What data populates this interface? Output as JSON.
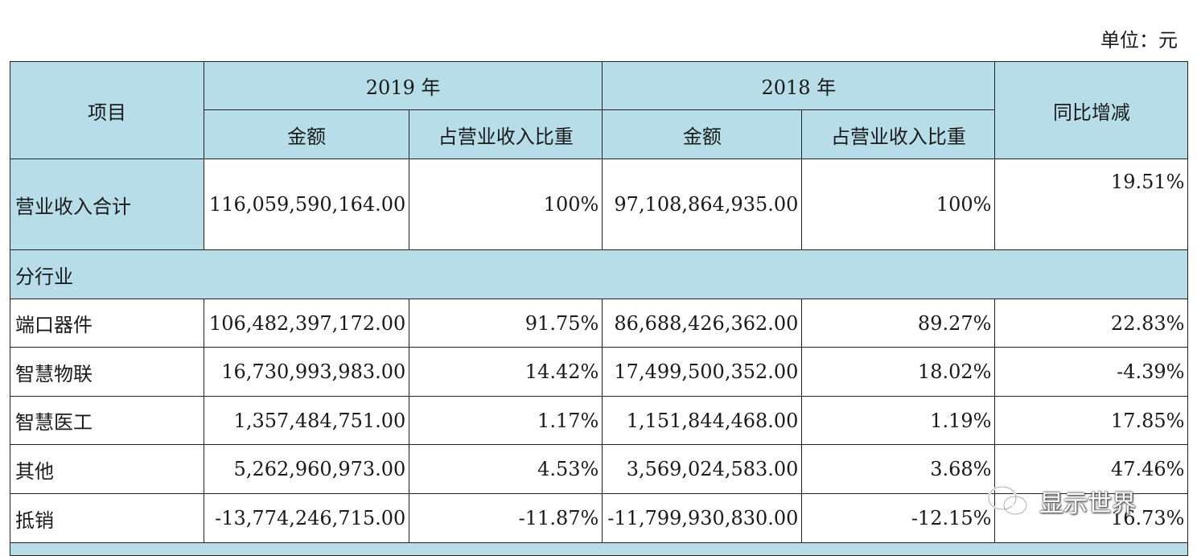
{
  "unit_label": "单位：元",
  "header": {
    "item": "项目",
    "year_2019": "2019 年",
    "year_2018": "2018 年",
    "yoy": "同比增减",
    "amount": "金额",
    "share": "占营业收入比重"
  },
  "total": {
    "label": "营业收入合计",
    "amount_2019": "116,059,590,164.00",
    "share_2019": "100%",
    "amount_2018": "97,108,864,935.00",
    "share_2018": "100%",
    "yoy": "19.51%"
  },
  "section_label": "分行业",
  "rows": [
    {
      "label": "端口器件",
      "amount_2019": "106,482,397,172.00",
      "share_2019": "91.75%",
      "amount_2018": "86,688,426,362.00",
      "share_2018": "89.27%",
      "yoy": "22.83%"
    },
    {
      "label": "智慧物联",
      "amount_2019": "16,730,993,983.00",
      "share_2019": "14.42%",
      "amount_2018": "17,499,500,352.00",
      "share_2018": "18.02%",
      "yoy": "-4.39%"
    },
    {
      "label": "智慧医工",
      "amount_2019": "1,357,484,751.00",
      "share_2019": "1.17%",
      "amount_2018": "1,151,844,468.00",
      "share_2018": "1.19%",
      "yoy": "17.85%"
    },
    {
      "label": "其他",
      "amount_2019": "5,262,960,973.00",
      "share_2019": "4.53%",
      "amount_2018": "3,569,024,583.00",
      "share_2018": "3.68%",
      "yoy": "47.46%"
    },
    {
      "label": "抵销",
      "amount_2019": "-13,774,246,715.00",
      "share_2019": "-11.87%",
      "amount_2018": "-11,799,930,830.00",
      "share_2018": "-12.15%",
      "yoy": "16.73%"
    }
  ],
  "watermark": {
    "text": "显示世界",
    "icon": "wechat-icon"
  },
  "colors": {
    "header_bg": "#b7dee8",
    "border": "#222222"
  }
}
